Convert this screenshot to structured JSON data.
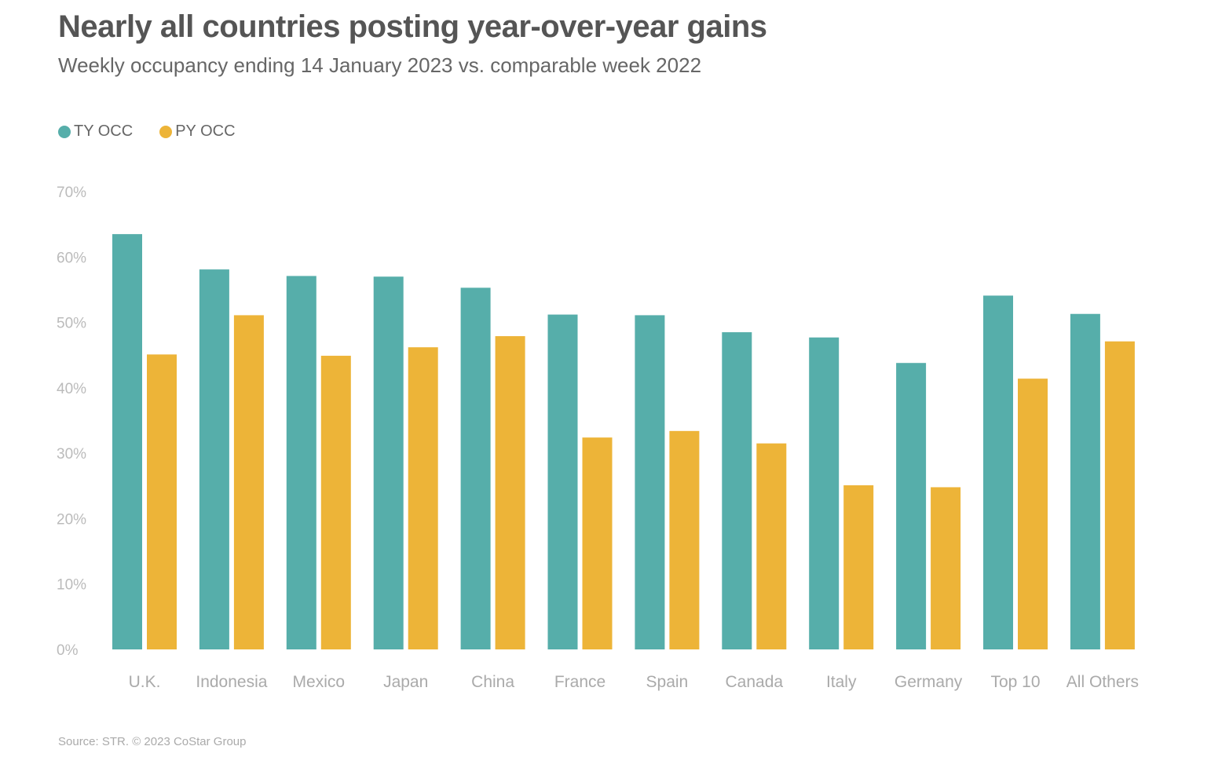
{
  "chart_data": {
    "type": "bar",
    "title": "Nearly all countries posting year-over-year gains",
    "subtitle": "Weekly occupancy ending 14 January 2023 vs. comparable week 2022",
    "categories": [
      "U.K.",
      "Indonesia",
      "Mexico",
      "Japan",
      "China",
      "France",
      "Spain",
      "Canada",
      "Italy",
      "Germany",
      "Top 10",
      "All Others"
    ],
    "series": [
      {
        "name": "TY OCC",
        "color": "#56aeaa",
        "values": [
          63.5,
          58.1,
          57.1,
          57.0,
          55.3,
          51.2,
          51.1,
          48.5,
          47.7,
          43.8,
          54.1,
          51.3
        ]
      },
      {
        "name": "PY OCC",
        "color": "#edb438",
        "values": [
          45.1,
          51.1,
          44.9,
          46.2,
          47.9,
          32.4,
          33.4,
          31.5,
          25.1,
          24.8,
          41.4,
          47.1
        ]
      }
    ],
    "ylim": [
      0,
      70
    ],
    "yticks": [
      "0%",
      "10%",
      "20%",
      "30%",
      "40%",
      "50%",
      "60%",
      "70%"
    ],
    "xlabel": "",
    "ylabel": "",
    "legend_position": "top-left",
    "grid": false
  },
  "source": "Source: STR. © 2023 CoStar Group"
}
